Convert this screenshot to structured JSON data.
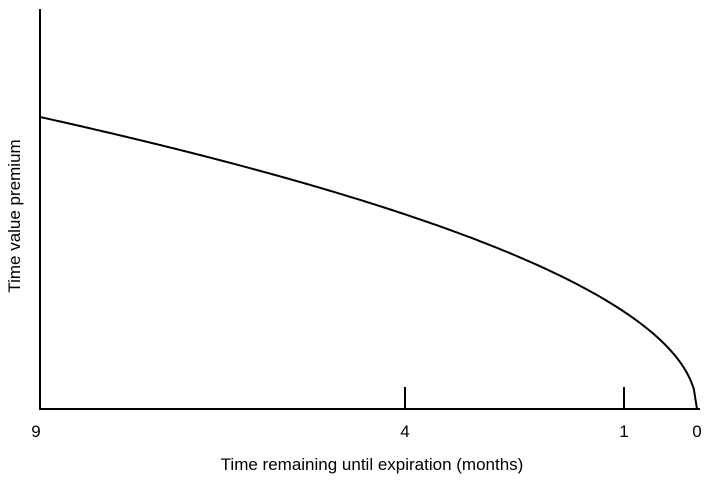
{
  "chart_data": {
    "type": "line",
    "title": "",
    "xlabel": "Time remaining until expiration (months)",
    "ylabel": "Time value premium",
    "x_direction": "reversed",
    "xlim": [
      9,
      0
    ],
    "ticks": [
      {
        "value": 9,
        "label": "9"
      },
      {
        "value": 4,
        "label": "4"
      },
      {
        "value": 1,
        "label": "1"
      },
      {
        "value": 0,
        "label": "0"
      }
    ],
    "series": [
      {
        "x": [
          9,
          8,
          7,
          6,
          5,
          4,
          3,
          2,
          1,
          0.5,
          0
        ],
        "y": [
          1.0,
          0.943,
          0.882,
          0.816,
          0.745,
          0.667,
          0.577,
          0.471,
          0.333,
          0.236,
          0.0
        ]
      }
    ],
    "ylim": [
      0,
      1.36
    ],
    "grid": false,
    "colors": {
      "line": "#000000",
      "axis": "#000000"
    }
  }
}
